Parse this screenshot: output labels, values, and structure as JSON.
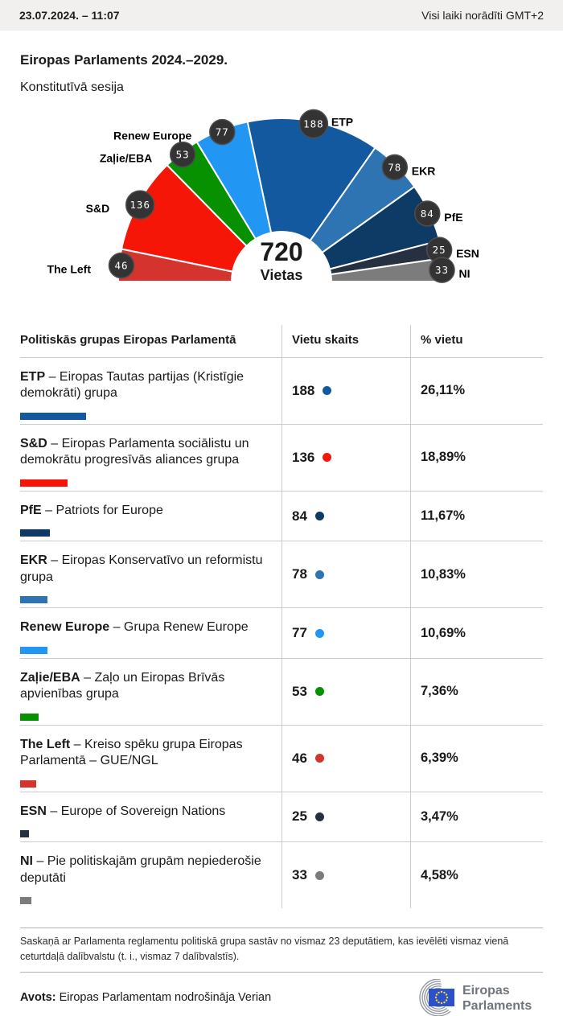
{
  "topbar": {
    "datetime": "23.07.2024. – 11:07",
    "timezone_note": "Visi laiki norādīti GMT+2"
  },
  "header": {
    "title": "Eiropas Parlaments 2024.–2029.",
    "subtitle": "Konstitutīvā sesija"
  },
  "chart_data": {
    "type": "hemicycle-donut",
    "title": "Eiropas Parlaments 2024.–2029. Konstitutīvā sesija",
    "total": 720,
    "total_label": "Vietas",
    "order": "left-to-right",
    "badge_color": "#333333",
    "groups": [
      {
        "abbr": "The Left",
        "name": "Kreiso spēku grupa Eiropas Parlamentā – GUE/NGL",
        "seats": 46,
        "pct": "6,39%",
        "color": "#d5332d"
      },
      {
        "abbr": "S&D",
        "name": "Eiropas Parlamenta sociālistu un demokrātu progresīvās aliances grupa",
        "seats": 136,
        "pct": "18,89%",
        "color": "#f51607"
      },
      {
        "abbr": "Zaļie/EBA",
        "name": "Zaļo un Eiropas Brīvās apvienības grupa",
        "seats": 53,
        "pct": "7,36%",
        "color": "#079000"
      },
      {
        "abbr": "Renew Europe",
        "name": "Grupa Renew Europe",
        "seats": 77,
        "pct": "10,69%",
        "color": "#2196f3"
      },
      {
        "abbr": "ETP",
        "name": "Eiropas Tautas partijas (Kristīgie demokrāti) grupa",
        "seats": 188,
        "pct": "26,11%",
        "color": "#12599f"
      },
      {
        "abbr": "EKR",
        "name": "Eiropas Konservatīvo un reformistu grupa",
        "seats": 78,
        "pct": "10,83%",
        "color": "#2e74b2"
      },
      {
        "abbr": "PfE",
        "name": "Patriots for Europe",
        "seats": 84,
        "pct": "11,67%",
        "color": "#0e3a66"
      },
      {
        "abbr": "ESN",
        "name": "Europe of Sovereign Nations",
        "seats": 25,
        "pct": "3,47%",
        "color": "#253140"
      },
      {
        "abbr": "NI",
        "name": "Pie politiskajām grupām nepiederošie deputāti",
        "seats": 33,
        "pct": "4,58%",
        "color": "#7c7c7c"
      }
    ]
  },
  "table": {
    "headers": [
      "Politiskās grupas Eiropas Parlamentā",
      "Vietu skaits",
      "% vietu"
    ],
    "name_separator": " – ",
    "row_indices": [
      4,
      1,
      6,
      5,
      3,
      2,
      0,
      7,
      8
    ]
  },
  "footnote": "Saskaņā ar Parlamenta reglamentu politiskā grupa sastāv no vismaz 23 deputātiem, kas ievēlēti vismaz vienā ceturtdaļā dalībvalstu (t. i., vismaz 7 dalībvalstīs).",
  "source": {
    "label": "Avots:",
    "text": "Eiropas Parlamentam nodrošināja Verian"
  },
  "logo": {
    "line1": "Eiropas",
    "line2": "Parlaments"
  }
}
